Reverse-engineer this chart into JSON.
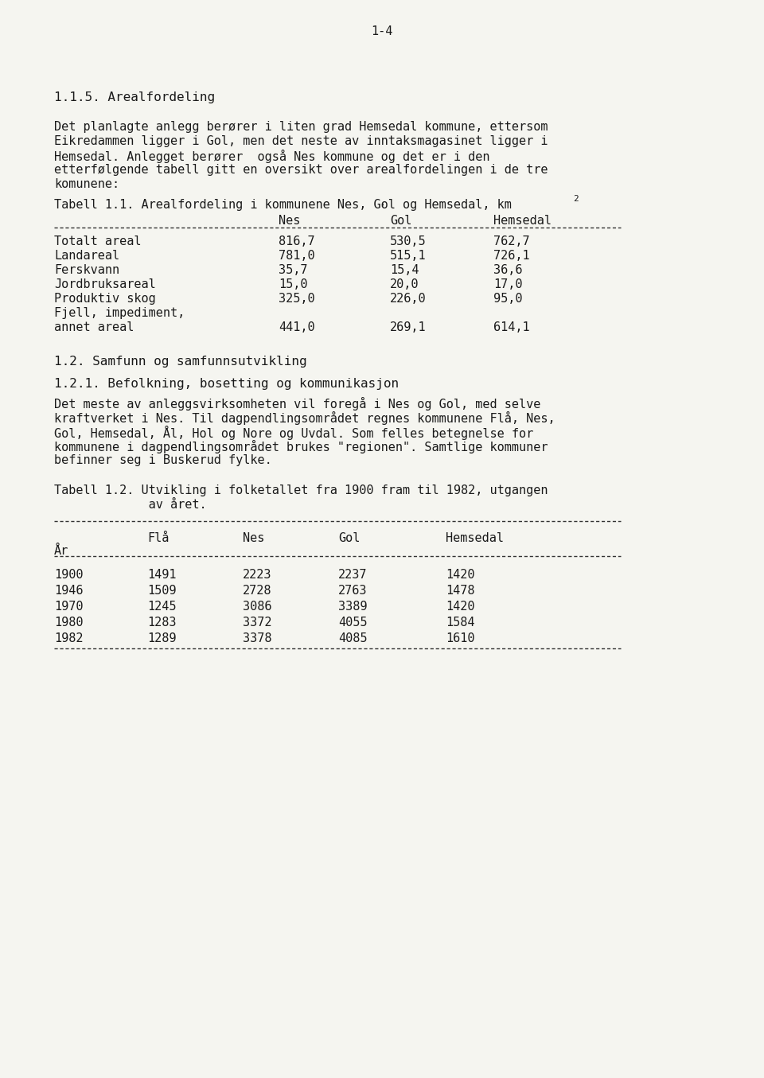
{
  "page_number": "1-4",
  "bg_color": "#f5f5f0",
  "text_color": "#1a1a1a",
  "font_family": "monospace",
  "section_1_1_5_title": "1.1.5. Arealfordeling",
  "section_1_1_5_body": "Det planlagte anlegg berører i liten grad Hemsedal kommune, ettersom\nEikredammen ligger i Gol, men det neste av inntaksmagasinet ligger i\nHemsedal. Anlegget berører  også Nes kommune og det er i den\netterfølgende tabell gitt en oversikt over arealfordelingen i de tre\nkomunene:",
  "table1_title": "Tabell 1.1. Arealfordeling i kommunene Nes, Gol og Hemsedal, km²",
  "table1_title_note": "                                                              ’",
  "table1_headers": [
    "",
    "Nes",
    "Gol",
    "Hemsedal"
  ],
  "table1_rows": [
    [
      "Totalt areal",
      "816,7",
      "530,5",
      "762,7"
    ],
    [
      "Landareal",
      "781,0",
      "515,1",
      "726,1"
    ],
    [
      "Ferskvann",
      "35,7",
      "15,4",
      "36,6"
    ],
    [
      "Jordbruksareal",
      "15,0",
      "20,0",
      "17,0"
    ],
    [
      "Produktiv skog",
      "325,0",
      "226,0",
      "95,0"
    ],
    [
      "Fjell, impediment,",
      "",
      "",
      ""
    ],
    [
      "annet areal",
      "441,0",
      "269,1",
      "614,1"
    ]
  ],
  "section_1_2_title": "1.2. Samfunn og samfunnsutvikling",
  "section_1_2_1_title": "1.2.1. Befolkning, bosetting og kommunikasjon",
  "section_1_2_1_body": "Det meste av anleggsvirksomheten vil foregå i Nes og Gol, med selve\nkraftverket i Nes. Til dagpendlingsområdet regnes kommunene Flå, Nes,\nGol, Hemsedal, Ål, Hol og Nore og Uvdal. Som felles betegnelse for\nkommunene i dagpendlingsområdet brukes \"regionen\". Samtlige kommuner\nbefinner seg i Buskerud fylke.",
  "table2_title": "Tabell 1.2. Utvikling i folketallet fra 1900 fram til 1982, utgangen\n             av året.",
  "table2_headers_row1": [
    "",
    "Flå",
    "Nes",
    "Gol",
    "Hemsedal"
  ],
  "table2_headers_row2": [
    "År",
    "",
    "",
    "",
    ""
  ],
  "table2_rows": [
    [
      "1900",
      "1491",
      "2223",
      "2237",
      "1420"
    ],
    [
      "1946",
      "1509",
      "2728",
      "2763",
      "1478"
    ],
    [
      "1970",
      "1245",
      "3086",
      "3389",
      "1420"
    ],
    [
      "1980",
      "1283",
      "3372",
      "4055",
      "1584"
    ],
    [
      "1982",
      "1289",
      "3378",
      "4085",
      "1610"
    ]
  ]
}
